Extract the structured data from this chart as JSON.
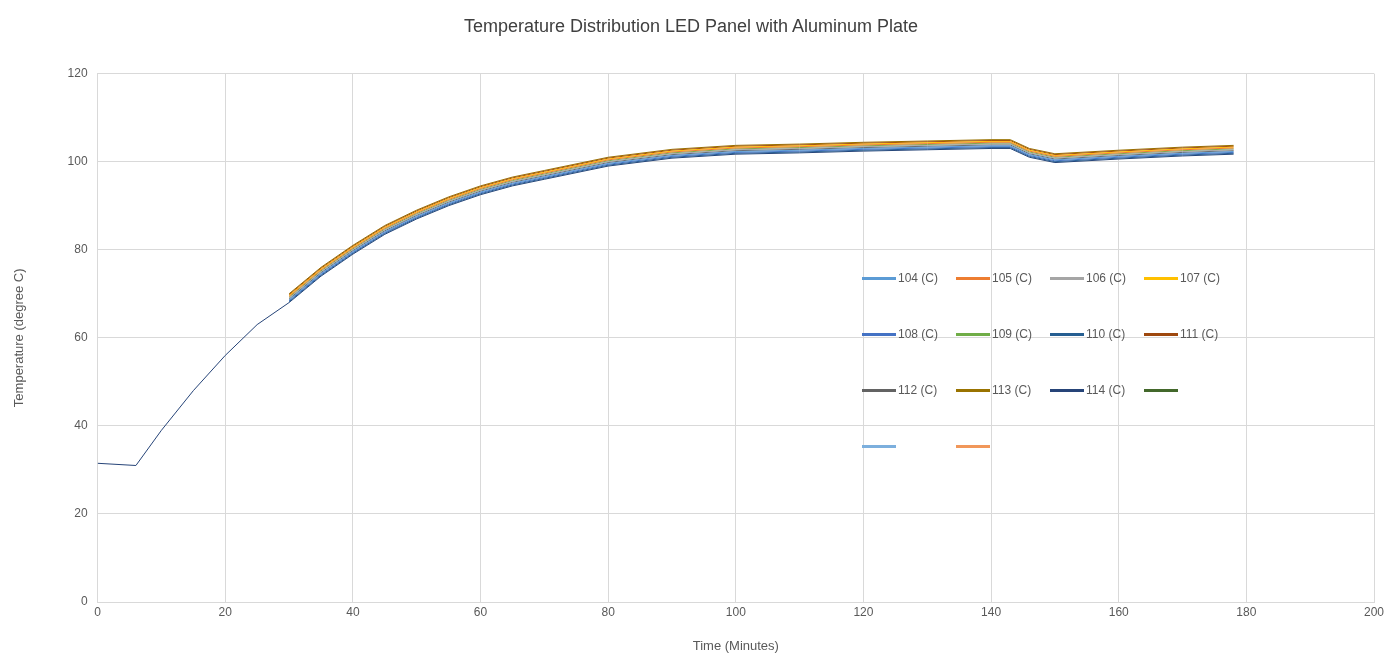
{
  "chart_data": {
    "type": "line",
    "title": "Temperature Distribution LED Panel with Aluminum Plate",
    "xlabel": "Time (Minutes)",
    "ylabel": "Temperature (degree C)",
    "x": [
      0,
      6,
      10,
      15,
      20,
      25,
      30,
      35,
      40,
      45,
      50,
      55,
      60,
      65,
      70,
      80,
      90,
      100,
      110,
      120,
      130,
      140,
      143,
      146,
      150,
      160,
      170,
      178
    ],
    "xlim": [
      0,
      200
    ],
    "xticks": [
      0,
      20,
      40,
      60,
      80,
      100,
      120,
      140,
      160,
      180,
      200
    ],
    "ylim": [
      0,
      120
    ],
    "yticks": [
      0,
      20,
      40,
      60,
      80,
      100,
      120
    ],
    "grid": true,
    "legend": "right",
    "marker": "none",
    "line_style": "solid",
    "series": [
      {
        "name": "104 (C)",
        "color": "#5b9bd5",
        "values": [
          null,
          null,
          null,
          null,
          null,
          null,
          68.6,
          74.6,
          79.6,
          84.1,
          87.6,
          90.6,
          93.1,
          95.1,
          96.6,
          99.6,
          101.4,
          102.3,
          102.6,
          103,
          103.3,
          103.6,
          103.6,
          101.6,
          100.4,
          101.2,
          101.9,
          102.3
        ]
      },
      {
        "name": "105 (C)",
        "color": "#ed7d31",
        "values": [
          null,
          null,
          null,
          null,
          null,
          null,
          69.4,
          75.4,
          80.4,
          84.9,
          88.4,
          91.4,
          93.9,
          95.9,
          97.4,
          100.4,
          102.2,
          103.1,
          103.4,
          103.8,
          104.1,
          104.4,
          104.4,
          102.4,
          101.2,
          102,
          102.7,
          103.1
        ]
      },
      {
        "name": "106 (C)",
        "color": "#a5a5a5",
        "values": [
          null,
          null,
          null,
          null,
          null,
          null,
          69,
          75,
          80,
          84.5,
          88,
          91,
          93.5,
          95.5,
          97,
          100,
          101.8,
          102.7,
          103,
          103.4,
          103.7,
          104,
          104,
          102,
          100.8,
          101.6,
          102.3,
          102.7
        ]
      },
      {
        "name": "107 (C)",
        "color": "#ffc000",
        "values": [
          null,
          null,
          null,
          null,
          null,
          null,
          69.6,
          75.6,
          80.6,
          85.1,
          88.6,
          91.6,
          94.1,
          96.1,
          97.6,
          100.6,
          102.4,
          103.3,
          103.6,
          104,
          104.3,
          104.6,
          104.6,
          102.6,
          101.4,
          102.2,
          102.9,
          103.3
        ]
      },
      {
        "name": "108 (C)",
        "color": "#4472c4",
        "values": [
          null,
          null,
          null,
          null,
          null,
          null,
          68.4,
          74.4,
          79.4,
          83.9,
          87.4,
          90.4,
          92.9,
          94.9,
          96.4,
          99.4,
          101.2,
          102.1,
          102.4,
          102.8,
          103.1,
          103.4,
          103.4,
          101.4,
          100.2,
          101,
          101.7,
          102.1
        ]
      },
      {
        "name": "109 (C)",
        "color": "#70ad47",
        "values": [
          null,
          null,
          null,
          null,
          null,
          null,
          69.2,
          75.2,
          80.2,
          84.7,
          88.2,
          91.2,
          93.7,
          95.7,
          97.2,
          100.2,
          102,
          102.9,
          103.2,
          103.6,
          103.9,
          104.2,
          104.2,
          102.2,
          101,
          101.8,
          102.5,
          102.9
        ]
      },
      {
        "name": "110 (C)",
        "color": "#255e91",
        "values": [
          null,
          null,
          null,
          null,
          null,
          null,
          68.2,
          74.2,
          79.2,
          83.7,
          87.2,
          90.2,
          92.7,
          94.7,
          96.2,
          99.2,
          101,
          101.9,
          102.2,
          102.6,
          102.9,
          103.2,
          103.2,
          101.2,
          100,
          100.8,
          101.5,
          101.9
        ]
      },
      {
        "name": "111 (C)",
        "color": "#9e480e",
        "values": [
          null,
          null,
          null,
          null,
          null,
          null,
          69.8,
          75.8,
          80.8,
          85.3,
          88.8,
          91.8,
          94.3,
          96.3,
          97.8,
          100.8,
          102.6,
          103.5,
          103.8,
          104.2,
          104.5,
          104.8,
          104.8,
          102.8,
          101.6,
          102.4,
          103.1,
          103.5
        ]
      },
      {
        "name": "112 (C)",
        "color": "#636363",
        "values": [
          null,
          null,
          null,
          null,
          null,
          null,
          68.8,
          74.8,
          79.8,
          84.3,
          87.8,
          90.8,
          93.3,
          95.3,
          96.8,
          99.8,
          101.6,
          102.5,
          102.8,
          103.2,
          103.5,
          103.8,
          103.8,
          101.8,
          100.6,
          101.4,
          102.1,
          102.5
        ]
      },
      {
        "name": "113 (C)",
        "color": "#997300",
        "values": [
          null,
          null,
          null,
          null,
          null,
          null,
          70,
          76,
          81,
          85.5,
          89,
          92,
          94.5,
          96.5,
          98,
          101,
          102.8,
          103.7,
          104,
          104.4,
          104.7,
          105,
          105,
          103,
          101.8,
          102.6,
          103.3,
          103.7
        ]
      },
      {
        "name": "114 (C)",
        "color": "#264478",
        "values": [
          31.5,
          31,
          39,
          48,
          56,
          63,
          68,
          74,
          79,
          83.5,
          87,
          90,
          92.5,
          94.5,
          96,
          99,
          100.8,
          101.7,
          102,
          102.4,
          102.7,
          103,
          103,
          101,
          99.8,
          100.6,
          101.3,
          101.7
        ]
      },
      {
        "color": "#43682b",
        "values": [
          null,
          null,
          null,
          null,
          null,
          null,
          null,
          null,
          null,
          null,
          null,
          null,
          null,
          null,
          null,
          null,
          null,
          null,
          null,
          null,
          null,
          null,
          null,
          null,
          null,
          null,
          null,
          null
        ]
      },
      {
        "color": "#7cafdd",
        "values": [
          null,
          null,
          null,
          null,
          null,
          null,
          null,
          null,
          null,
          null,
          null,
          null,
          null,
          null,
          null,
          null,
          null,
          null,
          null,
          null,
          null,
          null,
          null,
          null,
          null,
          null,
          null,
          null
        ]
      },
      {
        "color": "#f1975a",
        "values": [
          null,
          null,
          null,
          null,
          null,
          null,
          null,
          null,
          null,
          null,
          null,
          null,
          null,
          null,
          null,
          null,
          null,
          null,
          null,
          null,
          null,
          null,
          null,
          null,
          null,
          null,
          null,
          null
        ]
      }
    ]
  }
}
